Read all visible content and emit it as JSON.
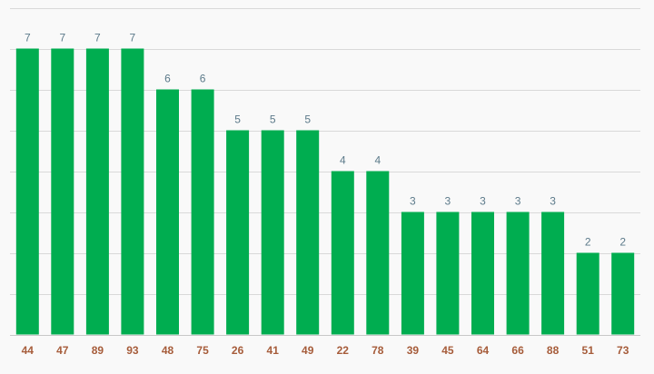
{
  "chart_data": {
    "type": "bar",
    "title": "",
    "xlabel": "",
    "ylabel": "",
    "categories": [
      "44",
      "47",
      "89",
      "93",
      "48",
      "75",
      "26",
      "41",
      "49",
      "22",
      "78",
      "39",
      "45",
      "64",
      "66",
      "88",
      "51",
      "73"
    ],
    "values": [
      7,
      7,
      7,
      7,
      6,
      6,
      5,
      5,
      5,
      4,
      4,
      3,
      3,
      3,
      3,
      3,
      2,
      2
    ],
    "ylim": [
      0,
      8
    ],
    "grid": true,
    "legend": "none",
    "colors": {
      "bar": "#00ad50",
      "value_label": "#5c7a8a",
      "tick_label": "#a65c3a",
      "grid": "#d9d9d9",
      "background": "#f9f9f9"
    }
  }
}
